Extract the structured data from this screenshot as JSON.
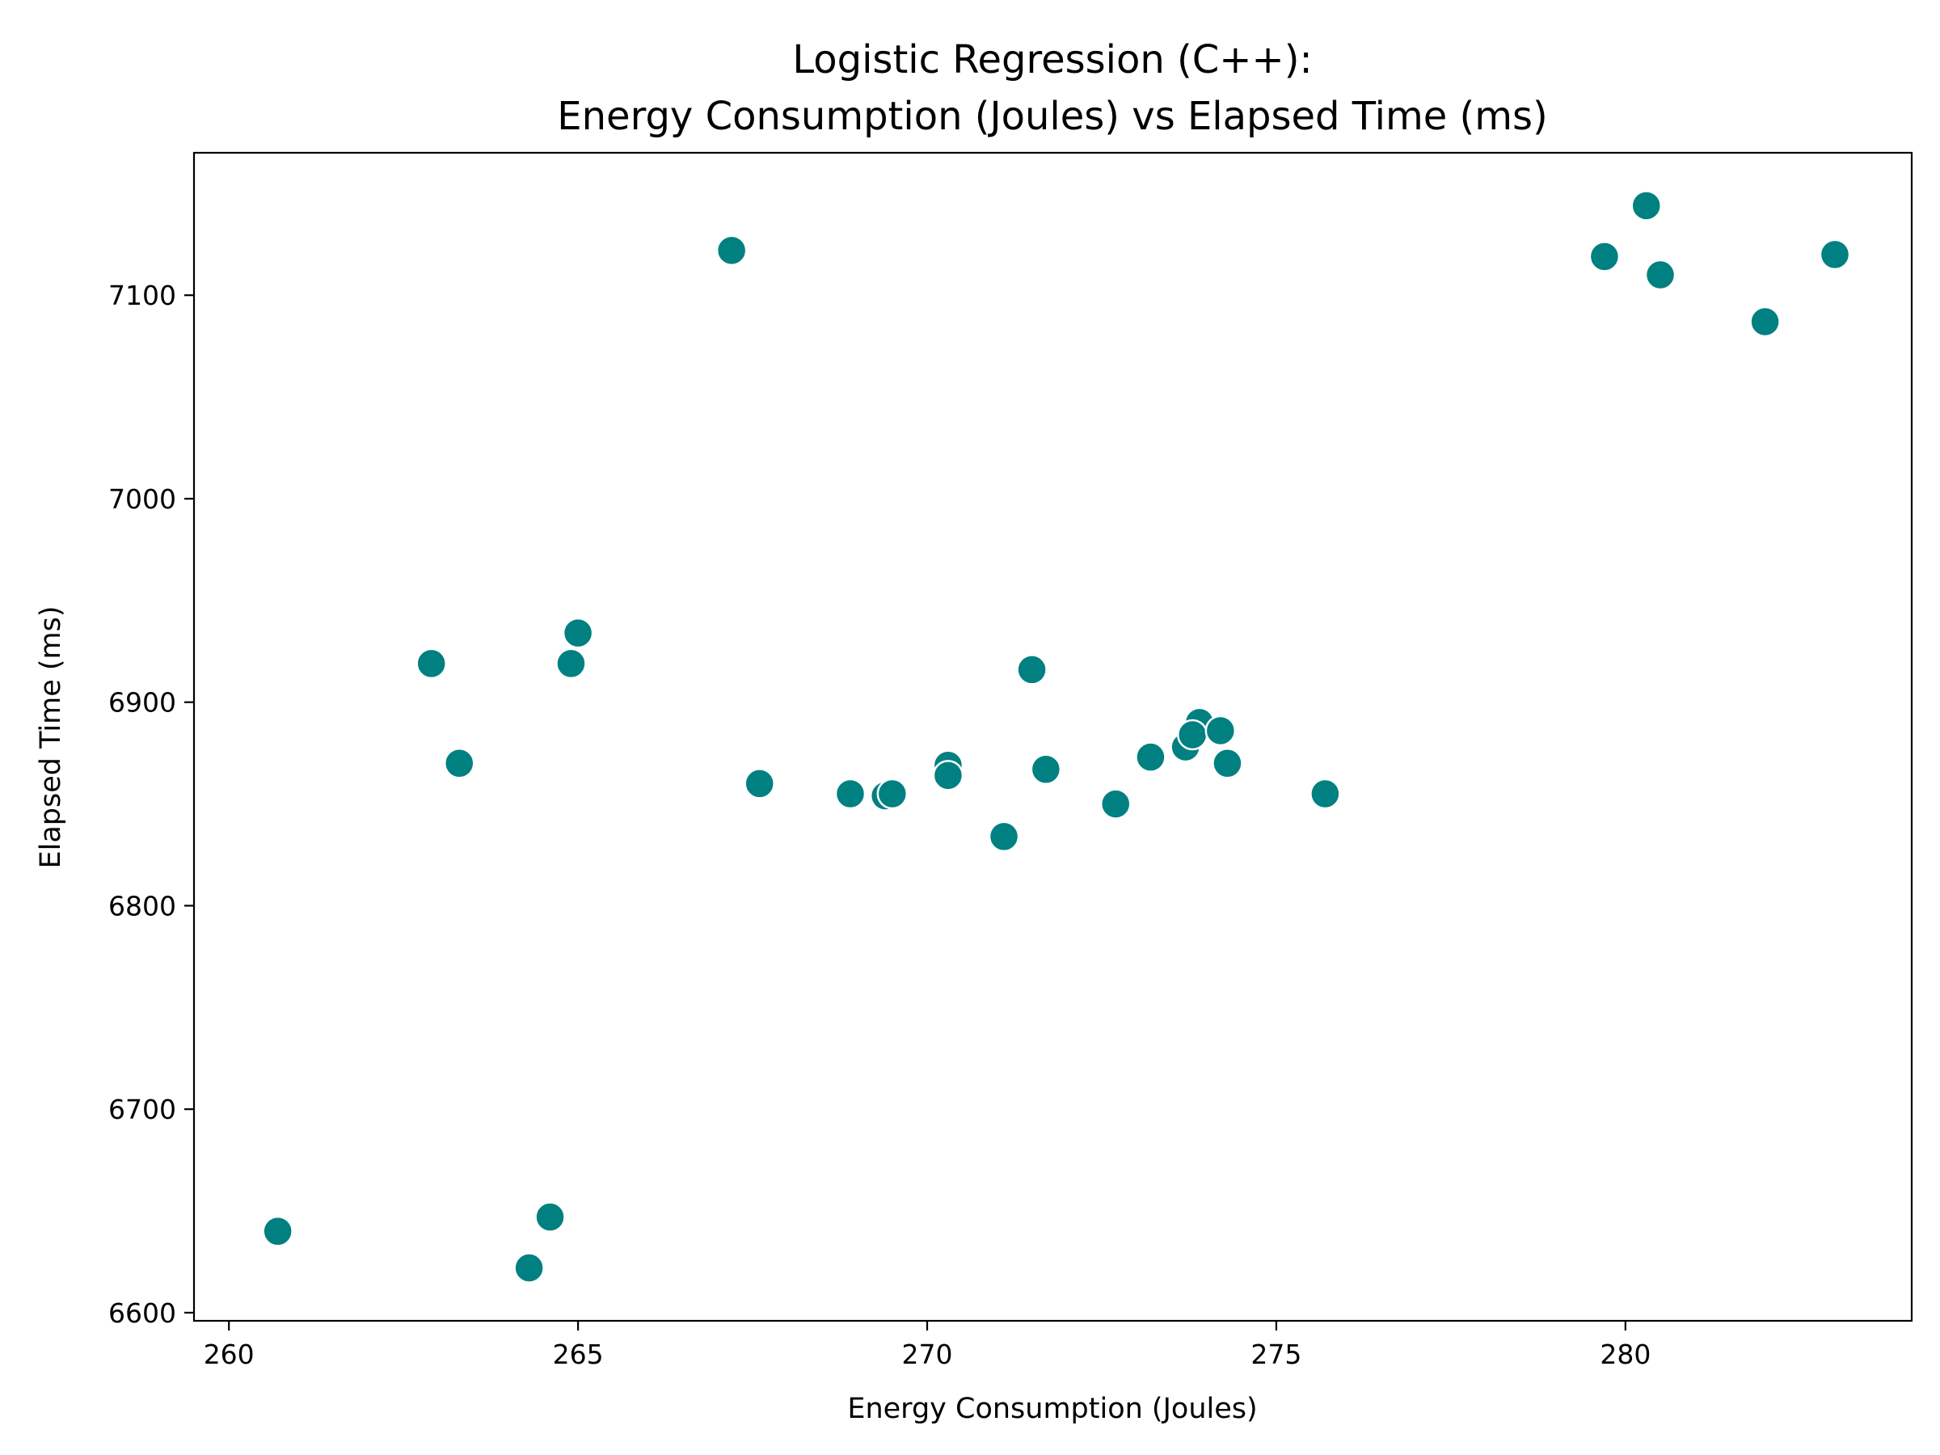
{
  "chart_data": {
    "type": "scatter",
    "title": "Logistic Regression (C++):",
    "subtitle": "Energy Consumption (Joules) vs Elapsed Time (ms)",
    "xlabel": "Energy Consumption (Joules)",
    "ylabel": "Elapsed Time (ms)",
    "xlim": [
      259.5,
      284.1
    ],
    "ylim": [
      6596,
      7170
    ],
    "xticks": [
      260,
      265,
      270,
      275,
      280
    ],
    "yticks": [
      6600,
      6700,
      6800,
      6900,
      7000,
      7100
    ],
    "grid": false,
    "legend": "none",
    "color": "#008080",
    "points": [
      {
        "x": 260.7,
        "y": 6640
      },
      {
        "x": 262.9,
        "y": 6919
      },
      {
        "x": 263.3,
        "y": 6870
      },
      {
        "x": 264.3,
        "y": 6622
      },
      {
        "x": 264.6,
        "y": 6647
      },
      {
        "x": 264.9,
        "y": 6919
      },
      {
        "x": 265.0,
        "y": 6934
      },
      {
        "x": 267.2,
        "y": 7122
      },
      {
        "x": 267.6,
        "y": 6860
      },
      {
        "x": 268.9,
        "y": 6855
      },
      {
        "x": 269.4,
        "y": 6854
      },
      {
        "x": 269.5,
        "y": 6855
      },
      {
        "x": 270.3,
        "y": 6869
      },
      {
        "x": 270.3,
        "y": 6864
      },
      {
        "x": 271.1,
        "y": 6834
      },
      {
        "x": 271.5,
        "y": 6916
      },
      {
        "x": 271.7,
        "y": 6867
      },
      {
        "x": 272.7,
        "y": 6850
      },
      {
        "x": 273.2,
        "y": 6873
      },
      {
        "x": 273.7,
        "y": 6878
      },
      {
        "x": 273.9,
        "y": 6890
      },
      {
        "x": 273.8,
        "y": 6884
      },
      {
        "x": 274.2,
        "y": 6886
      },
      {
        "x": 274.3,
        "y": 6870
      },
      {
        "x": 275.7,
        "y": 6855
      },
      {
        "x": 279.7,
        "y": 7119
      },
      {
        "x": 280.3,
        "y": 7144
      },
      {
        "x": 280.5,
        "y": 7110
      },
      {
        "x": 282.0,
        "y": 7087
      },
      {
        "x": 283.0,
        "y": 7120
      }
    ]
  }
}
